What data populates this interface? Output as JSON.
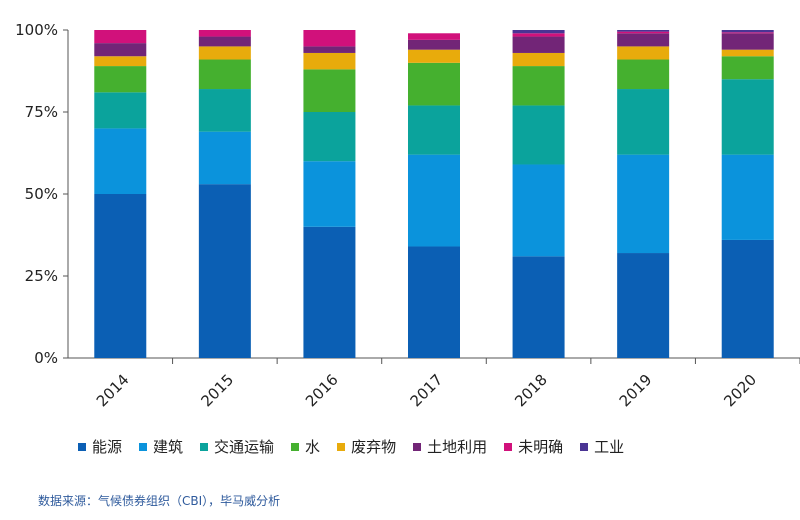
{
  "chart_data": {
    "type": "bar",
    "stacked": true,
    "categories": [
      "2014",
      "2015",
      "2016",
      "2017",
      "2018",
      "2019",
      "2020"
    ],
    "ylim": [
      0,
      100
    ],
    "yticks": [
      "0%",
      "25%",
      "50%",
      "75%",
      "100%"
    ],
    "ytick_values": [
      0,
      25,
      50,
      75,
      100
    ],
    "grid": false,
    "legend_position": "bottom",
    "series": [
      {
        "name": "能源",
        "color": "#0b5fb4",
        "values": [
          50,
          53,
          40,
          34,
          31,
          32,
          36
        ]
      },
      {
        "name": "建筑",
        "color": "#0b93dc",
        "values": [
          20,
          16,
          20,
          28,
          28,
          30,
          26
        ]
      },
      {
        "name": "交通运输",
        "color": "#0ba39c",
        "values": [
          11,
          13,
          15,
          15,
          18,
          20,
          23
        ]
      },
      {
        "name": "水",
        "color": "#45b02f",
        "values": [
          8,
          9,
          13,
          13,
          12,
          9,
          7
        ]
      },
      {
        "name": "废弃物",
        "color": "#e8ab0c",
        "values": [
          3,
          4,
          5,
          4,
          4,
          4,
          2
        ]
      },
      {
        "name": "土地利用",
        "color": "#722577",
        "values": [
          4,
          3,
          2,
          3,
          5,
          4,
          5
        ]
      },
      {
        "name": "未明确",
        "color": "#d1117b",
        "values": [
          4,
          3,
          5,
          2,
          1,
          0.5,
          0.3
        ]
      },
      {
        "name": "工业",
        "color": "#4a3494",
        "values": [
          0,
          1.2,
          0,
          0,
          1,
          0.5,
          0.7
        ]
      }
    ]
  },
  "source_text": "数据来源：气候债券组织（CBI），毕马威分析"
}
